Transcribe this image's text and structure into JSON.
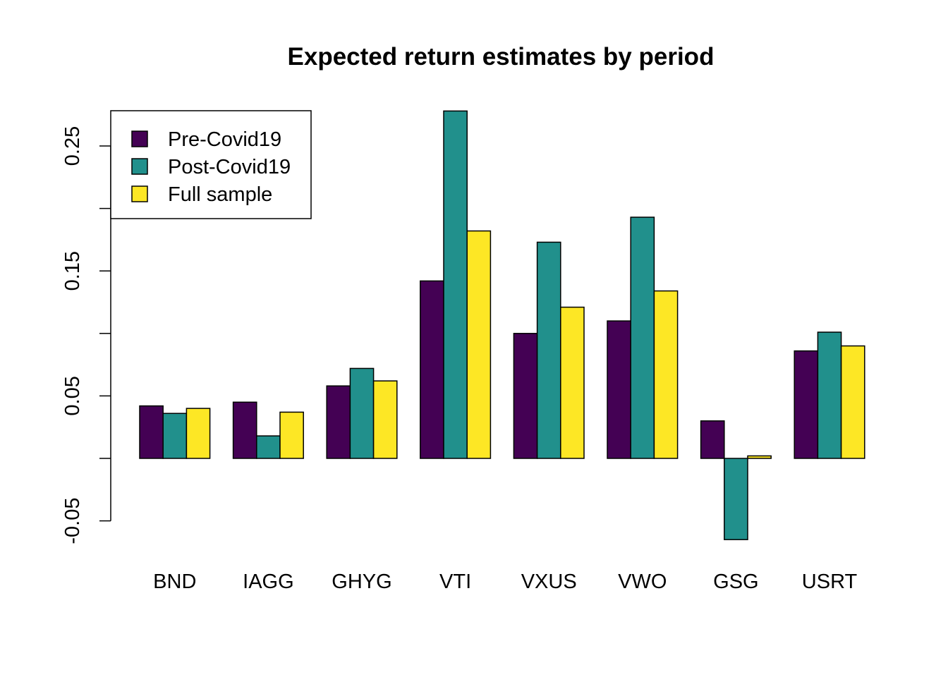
{
  "chart_data": {
    "type": "bar",
    "title": "Expected return estimates by period",
    "xlabel": "",
    "ylabel": "",
    "categories": [
      "BND",
      "IAGG",
      "GHYG",
      "VTI",
      "VXUS",
      "VWO",
      "GSG",
      "USRT"
    ],
    "series": [
      {
        "name": "Pre-Covid19",
        "color": "#440154",
        "values": [
          0.042,
          0.045,
          0.058,
          0.142,
          0.1,
          0.11,
          0.03,
          0.086
        ]
      },
      {
        "name": "Post-Covid19",
        "color": "#21908C",
        "values": [
          0.036,
          0.018,
          0.072,
          0.278,
          0.173,
          0.193,
          -0.065,
          0.101
        ]
      },
      {
        "name": "Full sample",
        "color": "#FDE725",
        "values": [
          0.04,
          0.037,
          0.062,
          0.182,
          0.121,
          0.134,
          0.002,
          0.09
        ]
      }
    ],
    "yticks": [
      -0.05,
      0.0,
      0.05,
      0.1,
      0.15,
      0.2,
      0.25
    ],
    "ytick_labels": [
      "-0.05",
      "",
      "0.05",
      "",
      "0.15",
      "",
      "0.25"
    ],
    "ylim": [
      -0.073,
      0.278
    ],
    "grid": false,
    "legend_position": "top-left"
  }
}
